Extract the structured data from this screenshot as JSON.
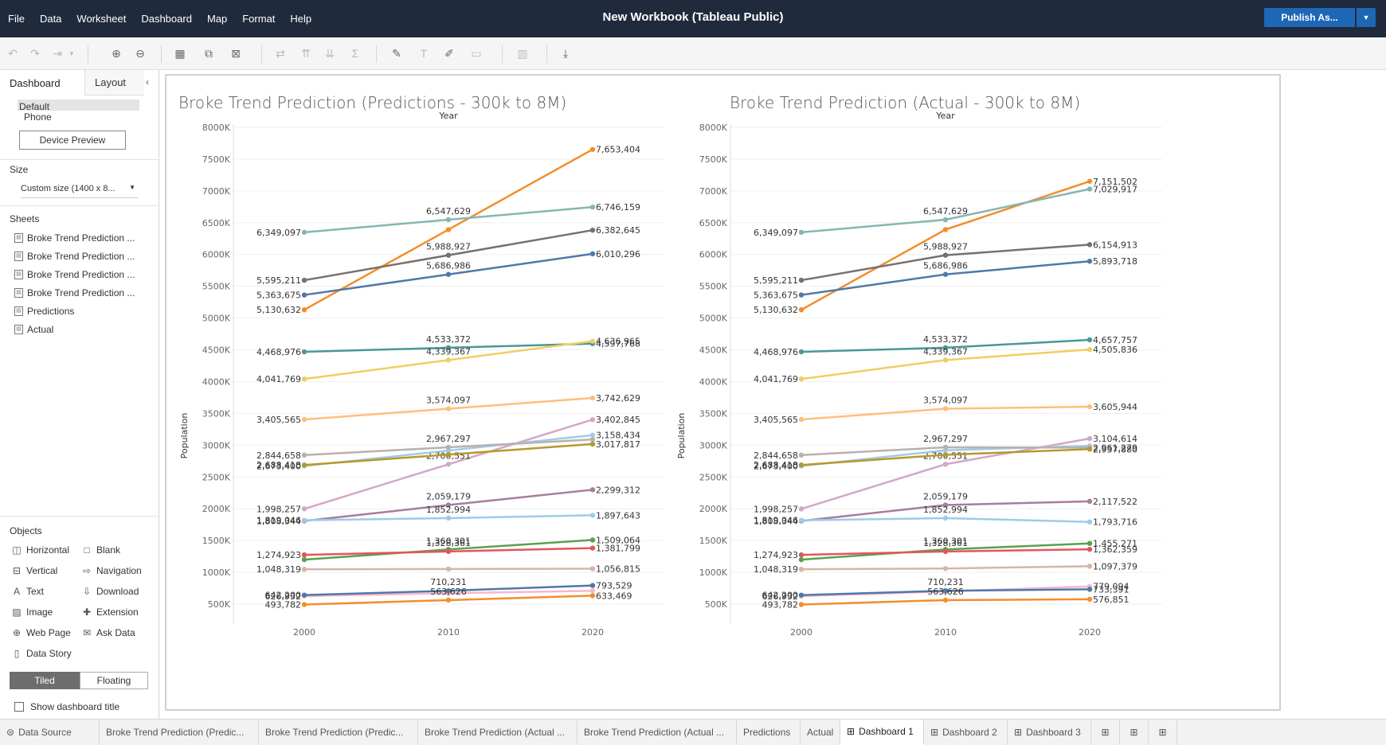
{
  "app": {
    "title": "New Workbook (Tableau Public)",
    "menu": [
      "File",
      "Data",
      "Worksheet",
      "Dashboard",
      "Map",
      "Format",
      "Help"
    ],
    "publish_label": "Publish As...",
    "accent": "#1e67b5",
    "topbar_color": "#1f2a3d"
  },
  "left_panel": {
    "tabs": [
      "Dashboard",
      "Layout"
    ],
    "devices": [
      "Default",
      "Phone"
    ],
    "device_preview_label": "Device Preview",
    "size_heading": "Size",
    "size_value": "Custom size (1400 x 8...",
    "sheets_heading": "Sheets",
    "sheets": [
      "Broke Trend Prediction ...",
      "Broke Trend Prediction ...",
      "Broke Trend Prediction ...",
      "Broke Trend Prediction ...",
      "Predictions",
      "Actual"
    ],
    "objects_heading": "Objects",
    "objects": [
      "Horizontal",
      "Blank",
      "Vertical",
      "Navigation",
      "Text",
      "Download",
      "Image",
      "Extension",
      "Web Page",
      "Ask Data",
      "Data Story"
    ],
    "tiled_label": "Tiled",
    "floating_label": "Floating",
    "show_title_label": "Show dashboard title"
  },
  "bottom_tabs": [
    "Data Source",
    "Broke Trend Prediction (Predic...",
    "Broke Trend Prediction (Predic...",
    "Broke Trend Prediction (Actual ...",
    "Broke Trend Prediction (Actual ...",
    "Predictions",
    "Actual",
    "Dashboard 1",
    "Dashboard 2",
    "Dashboard 3"
  ],
  "active_tab": "Dashboard 1",
  "chart_data": [
    {
      "type": "line",
      "title": "Broke Trend Prediction (Predictions - 300k to 8M)",
      "xlabel": "Year",
      "ylabel": "Population",
      "x": [
        2000,
        2010,
        2020
      ],
      "ylim": [
        300000,
        8000000
      ],
      "yticks": [
        "500K",
        "1000K",
        "1500K",
        "2000K",
        "2500K",
        "3000K",
        "3500K",
        "4000K",
        "4500K",
        "5000K",
        "5500K",
        "6000K",
        "6500K",
        "7000K",
        "7500K",
        "8000K"
      ],
      "grid": true,
      "series": [
        {
          "color": "#f28e2b",
          "values": [
            5130632,
            6392017,
            7653404
          ],
          "labels": [
            "5,130,632",
            "",
            "7,653,404"
          ]
        },
        {
          "color": "#85b6b2",
          "values": [
            6349097,
            6547629,
            6746159
          ],
          "labels": [
            "6,349,097",
            "6,547,629",
            "6,746,159"
          ]
        },
        {
          "color": "#79706e",
          "values": [
            5595211,
            5988927,
            6382645
          ],
          "labels": [
            "5,595,211",
            "5,988,927",
            "6,382,645"
          ]
        },
        {
          "color": "#4e79a7",
          "values": [
            5363675,
            5686986,
            6010296
          ],
          "labels": [
            "5,363,675",
            "5,686,986",
            "6,010,296"
          ]
        },
        {
          "color": "#499894",
          "values": [
            4468976,
            4533372,
            4597768
          ],
          "labels": [
            "4,468,976",
            "4,533,372",
            "4,597,768"
          ]
        },
        {
          "color": "#f1ce63",
          "values": [
            4041769,
            4339367,
            4636965
          ],
          "labels": [
            "4,041,769",
            "4,339,367",
            "4,636,965"
          ]
        },
        {
          "color": "#ffbe7d",
          "values": [
            3405565,
            3574097,
            3742629
          ],
          "labels": [
            "3,405,565",
            "3,574,097",
            "3,742,629"
          ]
        },
        {
          "color": "#d4a6c8",
          "values": [
            1998257,
            2700551,
            3402845
          ],
          "labels": [
            "1,998,257",
            "2,700,551",
            "3,402,845"
          ]
        },
        {
          "color": "#a0cbe8",
          "values": [
            2673400,
            2915917,
            3158434
          ],
          "labels": [
            "2,673,400",
            "",
            "3,158,434"
          ]
        },
        {
          "color": "#bab0ac",
          "values": [
            2844658,
            2967297,
            3089937
          ],
          "labels": [
            "2,844,658",
            "2,967,297",
            ""
          ]
        },
        {
          "color": "#b6992d",
          "values": [
            2688418,
            2853117,
            3017817
          ],
          "labels": [
            "2,688,418",
            "",
            "3,017,817"
          ]
        },
        {
          "color": "#a77c9c",
          "values": [
            1808344,
            2059179,
            2299312
          ],
          "labels": [
            "1,808,344",
            "2,059,179",
            "2,299,312"
          ]
        },
        {
          "color": "#9ecae9",
          "values": [
            1819046,
            1852994,
            1897643
          ],
          "labels": [
            "1,819,046",
            "1,852,994",
            "1,897,643"
          ]
        },
        {
          "color": "#59a14f",
          "values": [
            1200000,
            1360301,
            1509064
          ],
          "labels": [
            "",
            "1,360,301",
            "1,509,064"
          ]
        },
        {
          "color": "#e15759",
          "values": [
            1274923,
            1328361,
            1381799
          ],
          "labels": [
            "1,274,923",
            "1,328,361",
            "1,381,799"
          ]
        },
        {
          "color": "#d7b5a6",
          "values": [
            1048319,
            1052567,
            1056815
          ],
          "labels": [
            "1,048,319",
            "",
            "1,056,815"
          ]
        },
        {
          "color": "#f7b6d2",
          "values": [
            626932,
            672000,
            710000
          ],
          "labels": [
            "626,932",
            "",
            ""
          ]
        },
        {
          "color": "#4e79a7",
          "values": [
            642200,
            710231,
            793529
          ],
          "labels": [
            "642,200",
            "710,231",
            "793,529"
          ]
        },
        {
          "color": "#f28e2b",
          "values": [
            493782,
            563626,
            633469
          ],
          "labels": [
            "493,782",
            "563,626",
            "633,469"
          ]
        }
      ]
    },
    {
      "type": "line",
      "title": "Broke Trend Prediction (Actual - 300k to 8M)",
      "xlabel": "Year",
      "ylabel": "Population",
      "x": [
        2000,
        2010,
        2020
      ],
      "ylim": [
        300000,
        8000000
      ],
      "yticks": [
        "500K",
        "1000K",
        "1500K",
        "2000K",
        "2500K",
        "3000K",
        "3500K",
        "4000K",
        "4500K",
        "5000K",
        "5500K",
        "6000K",
        "6500K",
        "7000K",
        "7500K",
        "8000K"
      ],
      "grid": true,
      "series": [
        {
          "color": "#f28e2b",
          "values": [
            5130632,
            6392017,
            7151502
          ],
          "labels": [
            "5,130,632",
            "",
            "7,151,502"
          ]
        },
        {
          "color": "#85b6b2",
          "values": [
            6349097,
            6547629,
            7029917
          ],
          "labels": [
            "6,349,097",
            "6,547,629",
            "7,029,917"
          ]
        },
        {
          "color": "#79706e",
          "values": [
            5595211,
            5988927,
            6154913
          ],
          "labels": [
            "5,595,211",
            "5,988,927",
            "6,154,913"
          ]
        },
        {
          "color": "#4e79a7",
          "values": [
            5363675,
            5686986,
            5893718
          ],
          "labels": [
            "5,363,675",
            "5,686,986",
            "5,893,718"
          ]
        },
        {
          "color": "#499894",
          "values": [
            4468976,
            4533372,
            4657757
          ],
          "labels": [
            "4,468,976",
            "4,533,372",
            "4,657,757"
          ]
        },
        {
          "color": "#f1ce63",
          "values": [
            4041769,
            4339367,
            4505836
          ],
          "labels": [
            "4,041,769",
            "4,339,367",
            "4,505,836"
          ]
        },
        {
          "color": "#ffbe7d",
          "values": [
            3405565,
            3574097,
            3605944
          ],
          "labels": [
            "3,405,565",
            "3,574,097",
            "3,605,944"
          ]
        },
        {
          "color": "#d4a6c8",
          "values": [
            1998257,
            2700551,
            3104614
          ],
          "labels": [
            "1,998,257",
            "2,700,551",
            "3,104,614"
          ]
        },
        {
          "color": "#a0cbe8",
          "values": [
            2673400,
            2920000,
            2990000
          ],
          "labels": [
            "2,673,400",
            "",
            ""
          ]
        },
        {
          "color": "#bab0ac",
          "values": [
            2844658,
            2967297,
            2961279
          ],
          "labels": [
            "2,844,658",
            "2,967,297",
            "2,961,279"
          ]
        },
        {
          "color": "#b6992d",
          "values": [
            2688418,
            2850000,
            2937880
          ],
          "labels": [
            "2,688,418",
            "",
            "2,937,880"
          ]
        },
        {
          "color": "#a77c9c",
          "values": [
            1808344,
            2059179,
            2117522
          ],
          "labels": [
            "1,808,344",
            "2,059,179",
            "2,117,522"
          ]
        },
        {
          "color": "#9ecae9",
          "values": [
            1819046,
            1852994,
            1793716
          ],
          "labels": [
            "1,819,046",
            "1,852,994",
            "1,793,716"
          ]
        },
        {
          "color": "#59a14f",
          "values": [
            1200000,
            1360301,
            1455271
          ],
          "labels": [
            "",
            "1,360,301",
            "1,455,271"
          ]
        },
        {
          "color": "#e15759",
          "values": [
            1274923,
            1328361,
            1362359
          ],
          "labels": [
            "1,274,923",
            "1,328,361",
            "1,362,359"
          ]
        },
        {
          "color": "#d7b5a6",
          "values": [
            1048319,
            1060000,
            1097379
          ],
          "labels": [
            "1,048,319",
            "",
            "1,097,379"
          ]
        },
        {
          "color": "#f7b6d2",
          "values": [
            626932,
            700000,
            779094
          ],
          "labels": [
            "626,932",
            "",
            "779,094"
          ]
        },
        {
          "color": "#4e79a7",
          "values": [
            642200,
            710231,
            733391
          ],
          "labels": [
            "642,200",
            "710,231",
            "733,391"
          ]
        },
        {
          "color": "#f28e2b",
          "values": [
            493782,
            563626,
            576851
          ],
          "labels": [
            "493,782",
            "563,626",
            "576,851"
          ]
        }
      ]
    }
  ]
}
